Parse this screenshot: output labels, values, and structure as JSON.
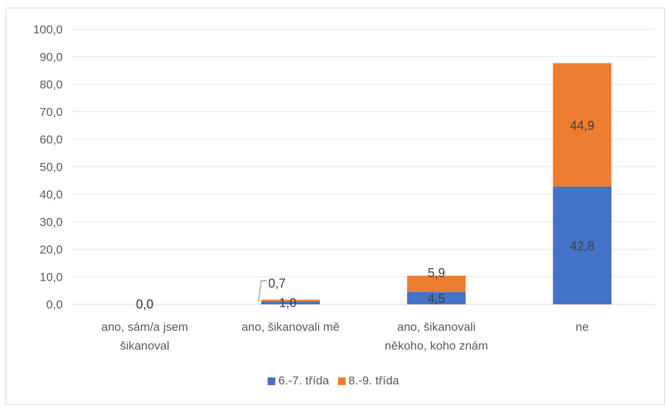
{
  "chart_data": {
    "type": "bar",
    "stacked": true,
    "categories": [
      [
        "ano, sám/a jsem",
        "šikanoval"
      ],
      [
        "ano, šikanovali mě"
      ],
      [
        "ano, šikanovali",
        "někoho, koho znám"
      ],
      [
        "ne"
      ]
    ],
    "series": [
      {
        "name": "6.-7. třída",
        "color": "#4472C4",
        "values": [
          0.0,
          1.0,
          4.5,
          42.8
        ],
        "labels": [
          "0,0",
          "1,0",
          "4,5",
          "42,8"
        ]
      },
      {
        "name": "8.-9. třída",
        "color": "#ED7D31",
        "values": [
          0.0,
          0.7,
          5.9,
          44.9
        ],
        "labels": [
          "0,0",
          "0,7",
          "5,9",
          "44,9"
        ]
      }
    ],
    "ylim": [
      0,
      100
    ],
    "yticks": [
      "0,0",
      "10,0",
      "20,0",
      "30,0",
      "40,0",
      "50,0",
      "60,0",
      "70,0",
      "80,0",
      "90,0",
      "100,0"
    ],
    "grid": true,
    "legend": "bottom"
  }
}
